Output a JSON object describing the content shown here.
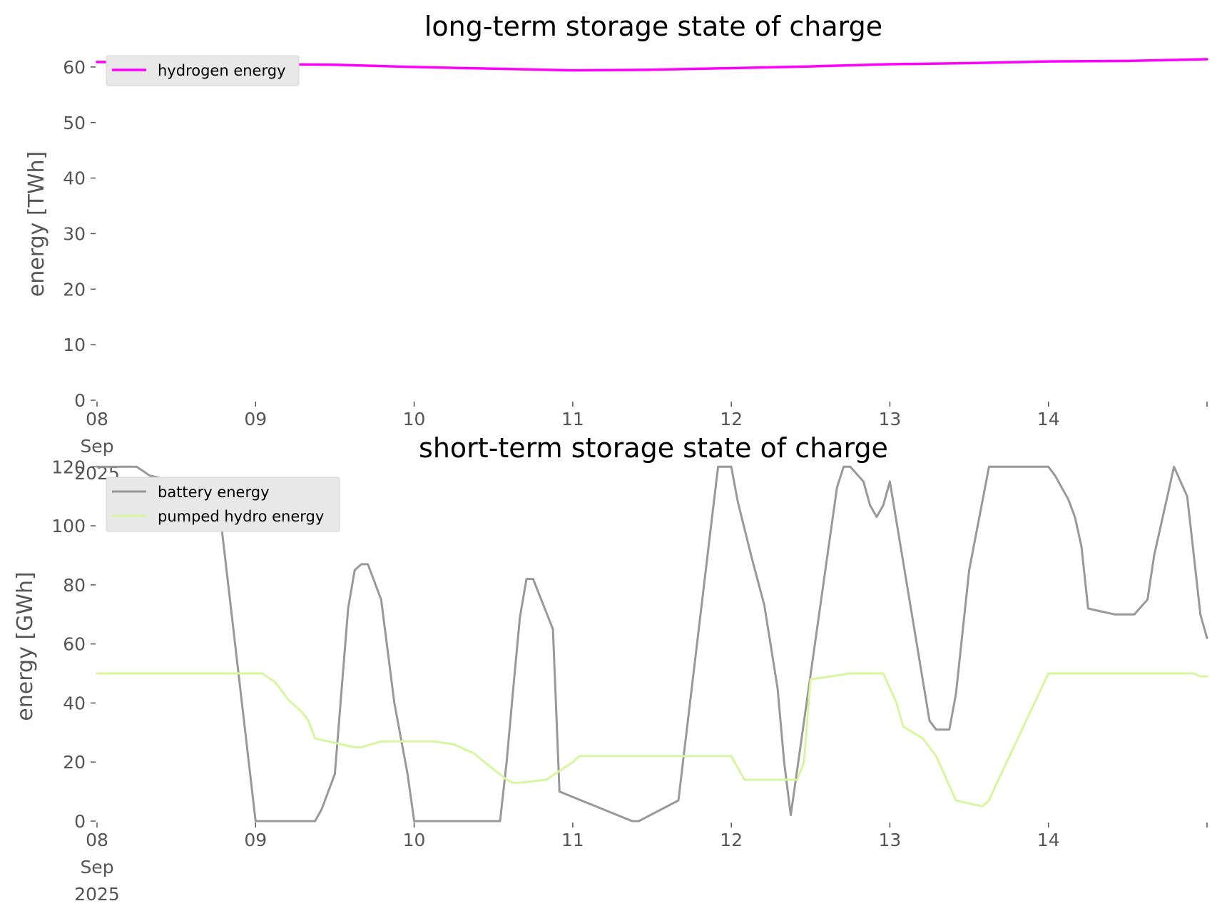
{
  "charts": [
    {
      "title": "long-term storage state of charge",
      "ylabel": "energy [TWh]",
      "xlabel": "",
      "ytick_labels": [
        "0",
        "10",
        "20",
        "30",
        "40",
        "50",
        "60"
      ],
      "xtick_labels": [
        "08\nSep\n2025",
        "09",
        "10",
        "11",
        "12",
        "13",
        "14"
      ],
      "legend": [
        "hydrogen energy"
      ]
    },
    {
      "title": "short-term storage state of charge",
      "ylabel": "energy [GWh]",
      "xlabel": "",
      "ytick_labels": [
        "0",
        "20",
        "40",
        "60",
        "80",
        "100",
        "120"
      ],
      "xtick_labels": [
        "08\nSep\n2025",
        "09",
        "10",
        "11",
        "12",
        "13",
        "14"
      ],
      "legend": [
        "battery energy",
        "pumped hydro energy"
      ]
    }
  ],
  "chart_data": [
    {
      "type": "line",
      "title": "long-term storage state of charge",
      "xlabel": "",
      "ylabel": "energy [TWh]",
      "x_axis": "date",
      "xlim": [
        "2025-09-08",
        "2025-09-15"
      ],
      "ylim": [
        0,
        65
      ],
      "yticks": [
        0,
        10,
        20,
        30,
        40,
        50,
        60
      ],
      "grid": false,
      "legend_position": "top-left",
      "series": [
        {
          "name": "hydrogen energy",
          "color": "#ff00ff",
          "x": [
            "2025-09-08 00:00",
            "2025-09-08 12:00",
            "2025-09-09 00:00",
            "2025-09-09 12:00",
            "2025-09-10 00:00",
            "2025-09-10 12:00",
            "2025-09-11 00:00",
            "2025-09-11 12:00",
            "2025-09-12 00:00",
            "2025-09-12 12:00",
            "2025-09-13 00:00",
            "2025-09-13 12:00",
            "2025-09-14 00:00",
            "2025-09-14 12:00",
            "2025-09-15 00:00"
          ],
          "values": [
            60.9,
            60.8,
            60.5,
            60.4,
            60.0,
            59.7,
            59.4,
            59.5,
            59.8,
            60.1,
            60.5,
            60.7,
            61.0,
            61.1,
            61.4
          ]
        }
      ]
    },
    {
      "type": "line",
      "title": "short-term storage state of charge",
      "xlabel": "",
      "ylabel": "energy [GWh]",
      "x_axis": "date",
      "xlim": [
        "2025-09-08",
        "2025-09-15"
      ],
      "ylim": [
        0,
        122
      ],
      "yticks": [
        0,
        20,
        40,
        60,
        80,
        100,
        120
      ],
      "grid": false,
      "legend_position": "top-left",
      "series": [
        {
          "name": "battery energy",
          "color": "#999999",
          "x": [
            "2025-09-08 00:00",
            "2025-09-08 06:00",
            "2025-09-08 08:00",
            "2025-09-08 12:00",
            "2025-09-08 15:00",
            "2025-09-08 18:00",
            "2025-09-09 00:00",
            "2025-09-09 01:00",
            "2025-09-09 06:00",
            "2025-09-09 09:00",
            "2025-09-09 10:00",
            "2025-09-09 12:00",
            "2025-09-09 14:00",
            "2025-09-09 15:00",
            "2025-09-09 16:00",
            "2025-09-09 17:00",
            "2025-09-09 19:00",
            "2025-09-09 21:00",
            "2025-09-09 23:00",
            "2025-09-10 00:00",
            "2025-09-10 10:00",
            "2025-09-10 13:00",
            "2025-09-10 14:00",
            "2025-09-10 15:00",
            "2025-09-10 16:00",
            "2025-09-10 17:00",
            "2025-09-10 18:00",
            "2025-09-10 21:00",
            "2025-09-10 22:00",
            "2025-09-11 09:00",
            "2025-09-11 10:00",
            "2025-09-11 16:00",
            "2025-09-11 22:00",
            "2025-09-12 00:00",
            "2025-09-12 01:00",
            "2025-09-12 03:00",
            "2025-09-12 05:00",
            "2025-09-12 07:00",
            "2025-09-12 08:00",
            "2025-09-12 09:00",
            "2025-09-12 16:00",
            "2025-09-12 17:00",
            "2025-09-12 18:00",
            "2025-09-12 20:00",
            "2025-09-12 21:00",
            "2025-09-12 22:00",
            "2025-09-12 23:00",
            "2025-09-13 00:00",
            "2025-09-13 06:00",
            "2025-09-13 07:00",
            "2025-09-13 08:00",
            "2025-09-13 09:00",
            "2025-09-13 10:00",
            "2025-09-13 12:00",
            "2025-09-13 15:00",
            "2025-09-13 16:00",
            "2025-09-13 17:00",
            "2025-09-14 00:00",
            "2025-09-14 01:00",
            "2025-09-14 02:00",
            "2025-09-14 03:00",
            "2025-09-14 04:00",
            "2025-09-14 05:00",
            "2025-09-14 06:00",
            "2025-09-14 10:00",
            "2025-09-14 11:00",
            "2025-09-14 12:00",
            "2025-09-14 13:00",
            "2025-09-14 15:00",
            "2025-09-14 16:00",
            "2025-09-14 19:00",
            "2025-09-14 21:00",
            "2025-09-14 22:00",
            "2025-09-14 23:00",
            "2025-09-15 00:00"
          ],
          "values": [
            120,
            120,
            117,
            115,
            115,
            116,
            0,
            0,
            0,
            0,
            4,
            16,
            72,
            85,
            87,
            87,
            75,
            40,
            16,
            0,
            0,
            0,
            20,
            45,
            69,
            82,
            82,
            65,
            10,
            0,
            0,
            7,
            120,
            120,
            108,
            90,
            73,
            45,
            20,
            2,
            113,
            120,
            120,
            115,
            107,
            103,
            107,
            115,
            34,
            31,
            31,
            31,
            43,
            85,
            120,
            120,
            120,
            120,
            117,
            113,
            109,
            103,
            93,
            72,
            70,
            70,
            70,
            70,
            75,
            90,
            120,
            110,
            90,
            70,
            62
          ]
        },
        {
          "name": "pumped hydro energy",
          "color": "#d8f5a0",
          "x": [
            "2025-09-08 00:00",
            "2025-09-08 23:00",
            "2025-09-09 01:00",
            "2025-09-09 03:00",
            "2025-09-09 05:00",
            "2025-09-09 07:00",
            "2025-09-09 08:00",
            "2025-09-09 09:00",
            "2025-09-09 15:00",
            "2025-09-09 16:00",
            "2025-09-09 19:00",
            "2025-09-10 00:00",
            "2025-09-10 03:00",
            "2025-09-10 06:00",
            "2025-09-10 08:00",
            "2025-09-10 09:00",
            "2025-09-10 14:00",
            "2025-09-10 15:00",
            "2025-09-10 16:00",
            "2025-09-10 20:00",
            "2025-09-11 00:00",
            "2025-09-11 01:00",
            "2025-09-11 18:00",
            "2025-09-11 22:00",
            "2025-09-11 23:00",
            "2025-09-12 00:00",
            "2025-09-12 02:00",
            "2025-09-12 04:00",
            "2025-09-12 07:00",
            "2025-09-12 08:00",
            "2025-09-12 09:00",
            "2025-09-12 10:00",
            "2025-09-12 11:00",
            "2025-09-12 12:00",
            "2025-09-12 18:00",
            "2025-09-12 19:00",
            "2025-09-12 23:00",
            "2025-09-13 01:00",
            "2025-09-13 02:00",
            "2025-09-13 05:00",
            "2025-09-13 07:00",
            "2025-09-13 09:00",
            "2025-09-13 10:00",
            "2025-09-13 14:00",
            "2025-09-13 15:00",
            "2025-09-13 16:00",
            "2025-09-14 00:00",
            "2025-09-14 22:00",
            "2025-09-14 23:00",
            "2025-09-15 00:00"
          ],
          "values": [
            50,
            50,
            50,
            47,
            41,
            37,
            34,
            28,
            25,
            25,
            27,
            27,
            27,
            26,
            24,
            23,
            14,
            13,
            13,
            14,
            20,
            22,
            22,
            22,
            22,
            22,
            14,
            14,
            14,
            14,
            14,
            14,
            20,
            48,
            50,
            50,
            50,
            40,
            32,
            28,
            22,
            12,
            7,
            5,
            7,
            12,
            50,
            50,
            49,
            49
          ]
        }
      ]
    }
  ]
}
